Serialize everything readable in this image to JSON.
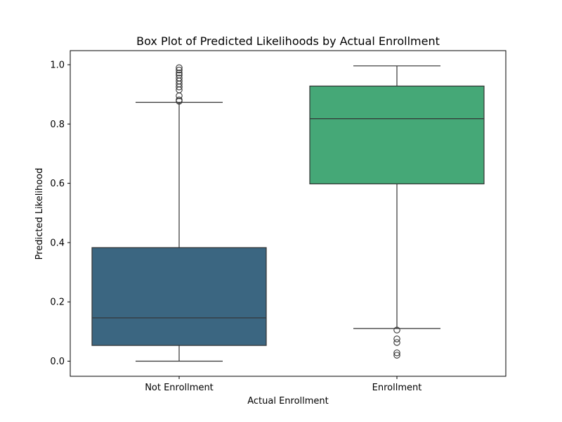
{
  "chart_data": {
    "type": "box",
    "title": "Box Plot of Predicted Likelihoods by Actual Enrollment",
    "xlabel": "Actual Enrollment",
    "ylabel": "Predicted Likelihood",
    "ylim": [
      -0.05,
      1.04
    ],
    "yticks": [
      0.0,
      0.2,
      0.4,
      0.6,
      0.8,
      1.0
    ],
    "ytick_labels": [
      "0.0",
      "0.2",
      "0.4",
      "0.6",
      "0.8",
      "1.0"
    ],
    "categories": [
      "Not Enrollment",
      "Enrollment"
    ],
    "grid": false,
    "series": [
      {
        "category": "Not Enrollment",
        "color": "#3b6681",
        "whisker_low": 0.0,
        "q1": 0.053,
        "median": 0.146,
        "q3": 0.383,
        "whisker_high": 0.873,
        "outliers": [
          0.877,
          0.881,
          0.895,
          0.915,
          0.925,
          0.935,
          0.945,
          0.955,
          0.965,
          0.972,
          0.982,
          0.99
        ]
      },
      {
        "category": "Enrollment",
        "color": "#45a877",
        "whisker_low": 0.11,
        "q1": 0.598,
        "median": 0.818,
        "q3": 0.928,
        "whisker_high": 0.996,
        "outliers": [
          0.105,
          0.075,
          0.063,
          0.028,
          0.02
        ]
      }
    ]
  }
}
